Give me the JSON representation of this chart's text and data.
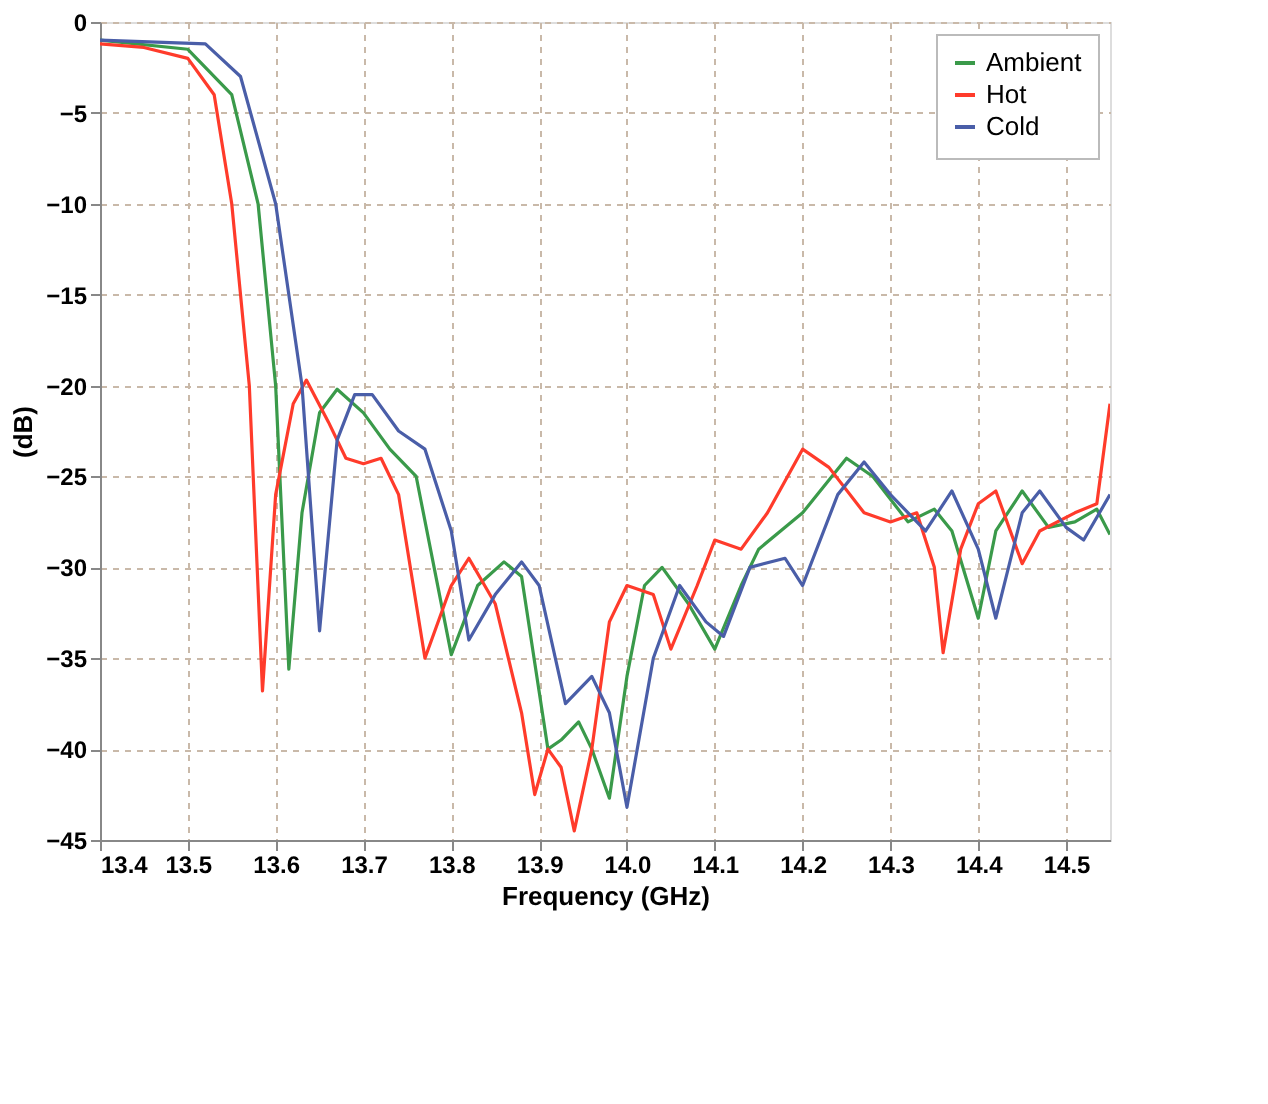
{
  "chart_data": {
    "type": "line",
    "xlabel": "Frequency (GHz)",
    "ylabel": "(dB)",
    "xlim": [
      13.4,
      14.55
    ],
    "ylim": [
      -45,
      0
    ],
    "xticks": [
      13.4,
      13.5,
      13.6,
      13.7,
      13.8,
      13.9,
      {
        "value": 14,
        "label": "14.0"
      },
      14.1,
      14.2,
      14.3,
      14.4,
      14.5
    ],
    "yticks": [
      0,
      -5,
      -10,
      -15,
      -20,
      -25,
      -30,
      -35,
      -40,
      -45
    ],
    "grid": true,
    "legend": "top right",
    "marker": "none",
    "line_style": "solid",
    "series": [
      {
        "name": "Ambient",
        "color": "#3a9a4a",
        "x": [
          13.4,
          13.5,
          13.55,
          13.58,
          13.6,
          13.615,
          13.63,
          13.65,
          13.67,
          13.7,
          13.73,
          13.76,
          13.8,
          13.83,
          13.86,
          13.88,
          13.91,
          13.925,
          13.945,
          13.96,
          13.98,
          14.0,
          14.02,
          14.04,
          14.07,
          14.1,
          14.13,
          14.15,
          14.2,
          14.25,
          14.28,
          14.32,
          14.35,
          14.37,
          14.4,
          14.42,
          14.45,
          14.48,
          14.51,
          14.535,
          14.55
        ],
        "values": [
          -1,
          -1.5,
          -4,
          -10,
          -20,
          -35.6,
          -27,
          -21.5,
          -20.2,
          -21.5,
          -23.5,
          -25,
          -34.8,
          -31,
          -29.7,
          -30.5,
          -40,
          -39.5,
          -38.5,
          -40,
          -42.7,
          -36,
          -31,
          -30,
          -32,
          -34.5,
          -31,
          -29,
          -27,
          -24,
          -25,
          -27.5,
          -26.8,
          -28,
          -32.8,
          -28,
          -25.8,
          -27.8,
          -27.5,
          -26.8,
          -28.2
        ]
      },
      {
        "name": "Hot",
        "color": "#ff3b2b",
        "x": [
          13.4,
          13.45,
          13.5,
          13.53,
          13.55,
          13.57,
          13.585,
          13.6,
          13.62,
          13.635,
          13.66,
          13.68,
          13.7,
          13.72,
          13.74,
          13.77,
          13.8,
          13.82,
          13.85,
          13.88,
          13.895,
          13.91,
          13.925,
          13.94,
          13.96,
          13.98,
          14.0,
          14.03,
          14.05,
          14.08,
          14.1,
          14.13,
          14.16,
          14.2,
          14.23,
          14.27,
          14.3,
          14.33,
          14.35,
          14.36,
          14.38,
          14.4,
          14.42,
          14.45,
          14.47,
          14.51,
          14.535,
          14.55
        ],
        "values": [
          -1.2,
          -1.4,
          -2,
          -4,
          -10,
          -20,
          -36.8,
          -26,
          -21,
          -19.7,
          -22,
          -24,
          -24.3,
          -24,
          -26,
          -35,
          -31,
          -29.5,
          -32,
          -38,
          -42.5,
          -40,
          -41,
          -44.5,
          -40,
          -33,
          -31,
          -31.5,
          -34.5,
          -31,
          -28.5,
          -29,
          -27,
          -23.5,
          -24.5,
          -27,
          -27.5,
          -27,
          -30,
          -34.7,
          -29,
          -26.5,
          -25.8,
          -29.8,
          -28,
          -27,
          -26.5,
          -21
        ]
      },
      {
        "name": "Cold",
        "color": "#4a5ea8",
        "x": [
          13.4,
          13.52,
          13.56,
          13.6,
          13.63,
          13.65,
          13.67,
          13.69,
          13.71,
          13.74,
          13.77,
          13.8,
          13.82,
          13.85,
          13.88,
          13.9,
          13.93,
          13.96,
          13.98,
          14.0,
          14.03,
          14.06,
          14.09,
          14.11,
          14.14,
          14.18,
          14.2,
          14.24,
          14.27,
          14.3,
          14.34,
          14.37,
          14.4,
          14.42,
          14.45,
          14.47,
          14.5,
          14.52,
          14.55
        ],
        "values": [
          -1,
          -1.2,
          -3,
          -10,
          -20,
          -33.5,
          -23,
          -20.5,
          -20.5,
          -22.5,
          -23.5,
          -28,
          -34,
          -31.5,
          -29.7,
          -31,
          -37.5,
          -36,
          -38,
          -43.2,
          -35,
          -31,
          -33,
          -33.8,
          -30,
          -29.5,
          -31,
          -26,
          -24.2,
          -26,
          -28,
          -25.8,
          -29,
          -32.8,
          -27,
          -25.8,
          -27.8,
          -28.5,
          -26
        ]
      }
    ]
  }
}
